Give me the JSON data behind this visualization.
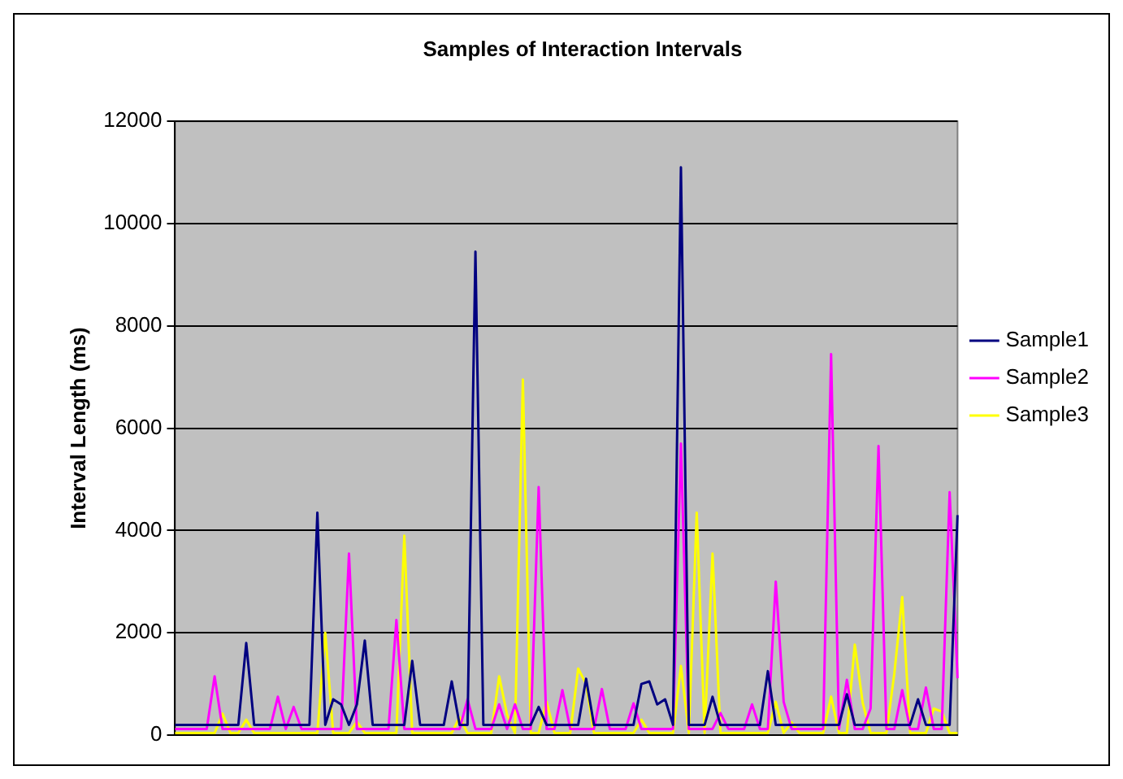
{
  "chart_data": {
    "type": "line",
    "title": "Samples of Interaction Intervals",
    "ylabel": "Interval Length (ms)",
    "categories": [
      null,
      null,
      null,
      null,
      null,
      null,
      null,
      null,
      null,
      null,
      null,
      null,
      null,
      null,
      null,
      null,
      null,
      null,
      null,
      null,
      null,
      null,
      null,
      null,
      null,
      null,
      null,
      null,
      null,
      null,
      null,
      null,
      null,
      null,
      null,
      null,
      null,
      null,
      null,
      null,
      null,
      null,
      null,
      null,
      null,
      null,
      null,
      null,
      null,
      null,
      null,
      null,
      null,
      null,
      null,
      null,
      null,
      null,
      null,
      null,
      null,
      null,
      null,
      null,
      null,
      null,
      null,
      null,
      null,
      null,
      null,
      null,
      null,
      null,
      null,
      null,
      null,
      null,
      null,
      null,
      null,
      null,
      null,
      null,
      null,
      null,
      null,
      null,
      null,
      null,
      null,
      null,
      null,
      null,
      null,
      null,
      null,
      null,
      null,
      null
    ],
    "series": [
      {
        "name": "Sample1",
        "color": "#000080",
        "values": [
          200,
          200,
          200,
          200,
          200,
          200,
          200,
          200,
          200,
          1800,
          200,
          200,
          200,
          200,
          200,
          200,
          200,
          200,
          4350,
          200,
          700,
          600,
          200,
          600,
          1850,
          200,
          200,
          200,
          200,
          200,
          1450,
          200,
          200,
          200,
          200,
          1050,
          200,
          200,
          9450,
          200,
          200,
          200,
          200,
          200,
          200,
          200,
          550,
          200,
          200,
          200,
          200,
          200,
          1100,
          200,
          200,
          200,
          200,
          200,
          200,
          1000,
          1050,
          600,
          700,
          200,
          11100,
          200,
          200,
          200,
          750,
          200,
          200,
          200,
          200,
          200,
          200,
          1250,
          200,
          200,
          200,
          200,
          200,
          200,
          200,
          200,
          200,
          800,
          200,
          200,
          200,
          200,
          200,
          200,
          200,
          200,
          700,
          200,
          200,
          200,
          200,
          4300
        ]
      },
      {
        "name": "Sample2",
        "color": "#ff00ff",
        "values": [
          120,
          120,
          120,
          120,
          120,
          1150,
          120,
          120,
          120,
          120,
          120,
          120,
          120,
          750,
          120,
          550,
          120,
          120,
          120,
          120,
          120,
          120,
          3550,
          120,
          120,
          120,
          120,
          120,
          2250,
          120,
          120,
          120,
          120,
          120,
          120,
          120,
          120,
          700,
          120,
          120,
          120,
          600,
          120,
          600,
          120,
          120,
          4850,
          120,
          120,
          880,
          120,
          120,
          120,
          120,
          900,
          120,
          120,
          120,
          620,
          120,
          120,
          120,
          120,
          120,
          5700,
          120,
          120,
          120,
          120,
          430,
          120,
          120,
          120,
          600,
          120,
          120,
          3000,
          650,
          120,
          120,
          120,
          120,
          120,
          7450,
          120,
          1080,
          120,
          120,
          520,
          5650,
          120,
          120,
          880,
          120,
          120,
          930,
          120,
          120,
          4750,
          1110
        ]
      },
      {
        "name": "Sample3",
        "color": "#ffff00",
        "values": [
          40,
          40,
          40,
          40,
          40,
          40,
          420,
          40,
          40,
          300,
          40,
          40,
          40,
          40,
          40,
          40,
          40,
          40,
          40,
          2000,
          40,
          40,
          40,
          260,
          40,
          40,
          40,
          40,
          40,
          3900,
          40,
          40,
          40,
          40,
          40,
          40,
          350,
          40,
          40,
          40,
          40,
          1150,
          400,
          40,
          6950,
          40,
          40,
          650,
          40,
          40,
          40,
          1300,
          1000,
          40,
          40,
          40,
          40,
          40,
          40,
          300,
          40,
          40,
          40,
          40,
          1350,
          40,
          4350,
          40,
          3550,
          40,
          40,
          40,
          40,
          40,
          40,
          40,
          650,
          40,
          250,
          40,
          40,
          40,
          40,
          750,
          40,
          40,
          1770,
          630,
          40,
          40,
          40,
          1200,
          2700,
          40,
          40,
          40,
          520,
          460,
          40,
          40
        ]
      }
    ],
    "ylim": [
      0,
      12000
    ],
    "yticks": [
      0,
      2000,
      4000,
      6000,
      8000,
      10000,
      12000
    ],
    "grid": "y",
    "legend": "right",
    "tick_labels": "y",
    "marker": "none",
    "line_style": "solid"
  }
}
